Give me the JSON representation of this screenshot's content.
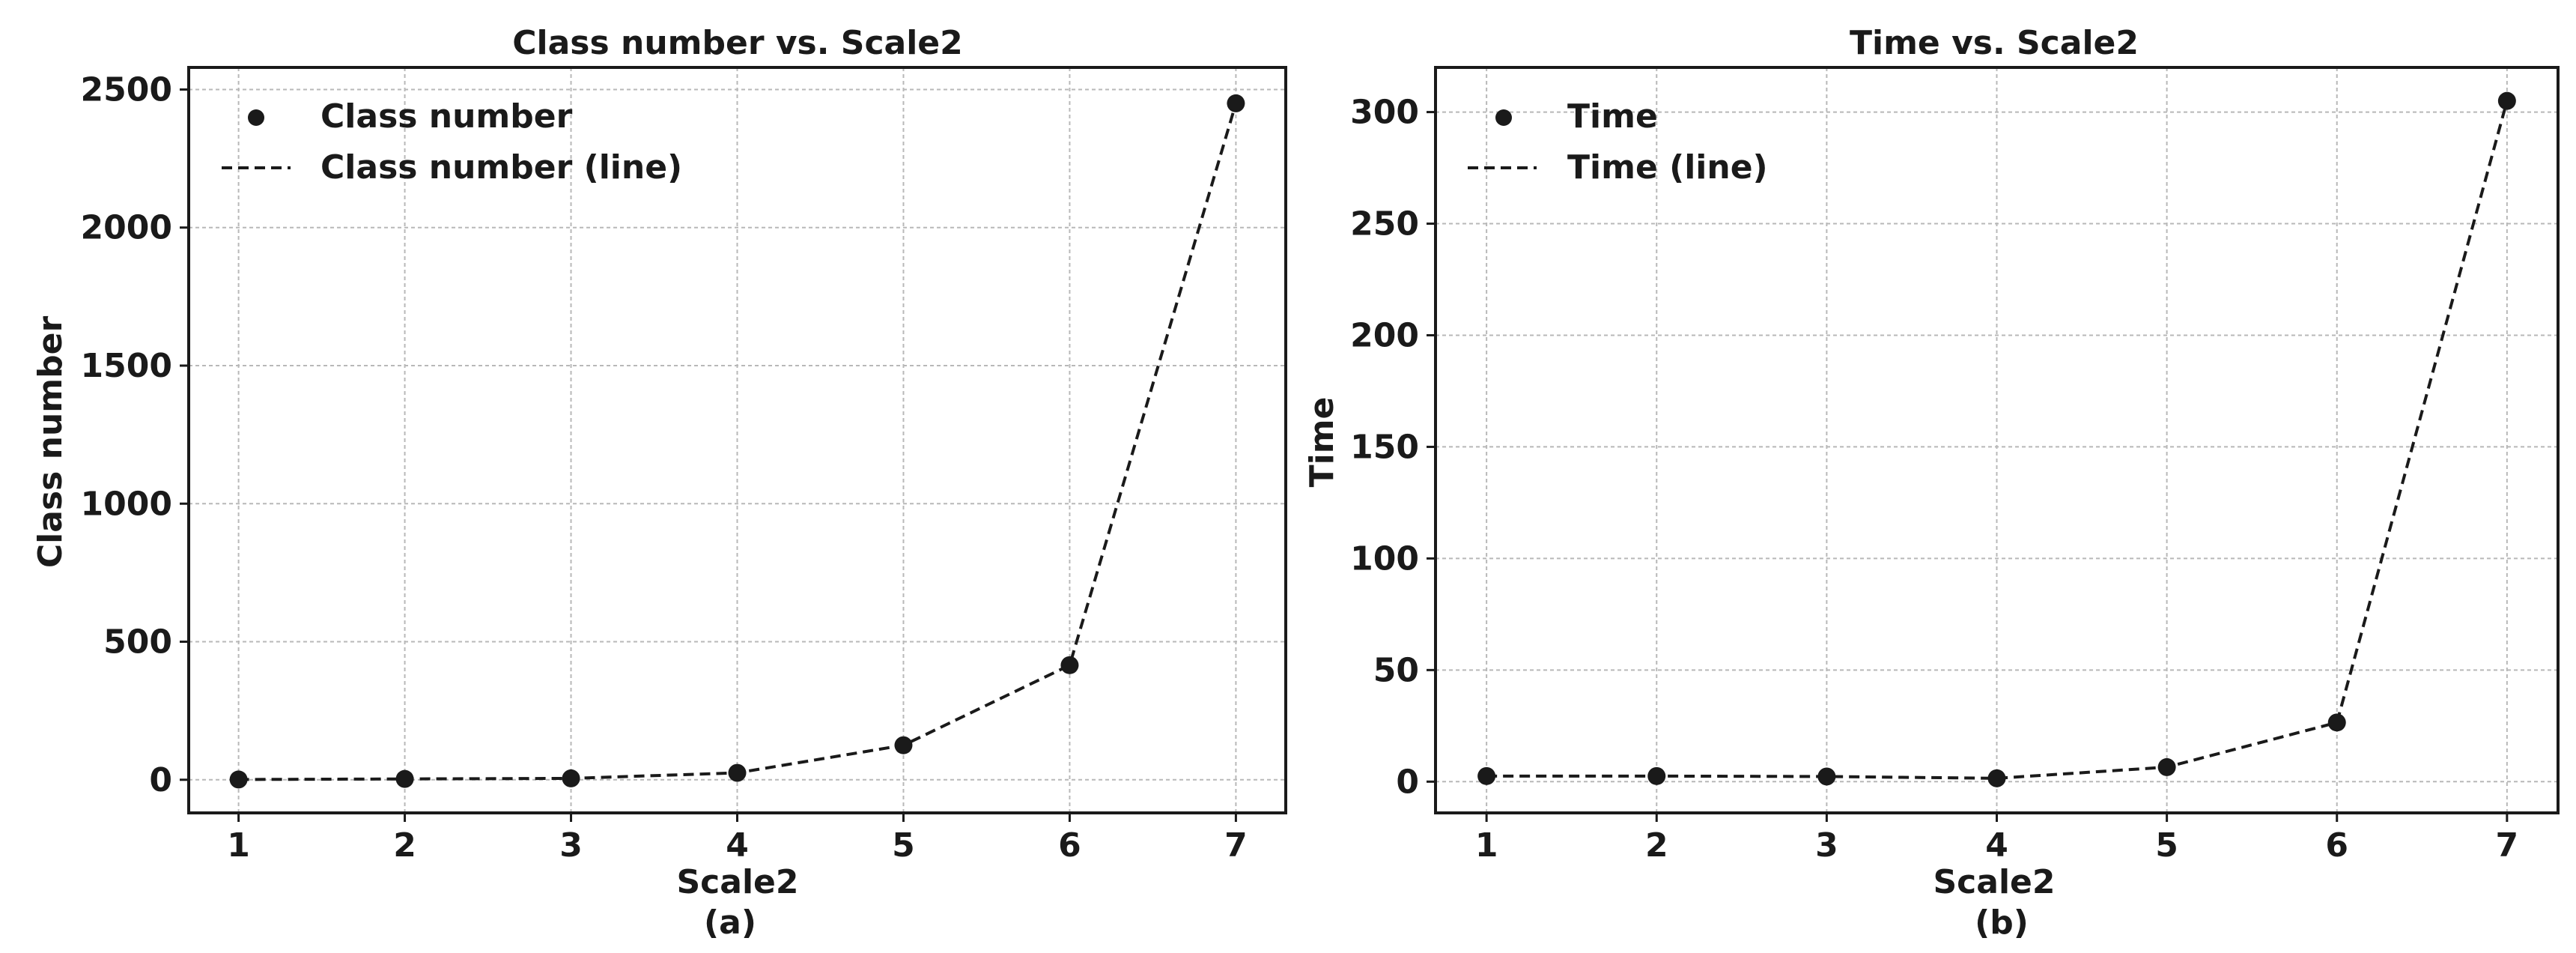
{
  "chart_data": [
    {
      "type": "line",
      "title": "Class number vs. Scale2",
      "xlabel": "Scale2",
      "ylabel": "Class number",
      "caption": "(a)",
      "x": [
        1,
        2,
        3,
        4,
        5,
        6,
        7
      ],
      "xticks": [
        "1",
        "2",
        "3",
        "4",
        "5",
        "6",
        "7"
      ],
      "yticks": [
        "0",
        "500",
        "1000",
        "1500",
        "2000",
        "2500"
      ],
      "xlim": [
        0.7,
        7.3
      ],
      "ylim": [
        -120,
        2580
      ],
      "grid": true,
      "legend_position": "top-left",
      "series": [
        {
          "name": "Class number",
          "style": "markers",
          "values": [
            1,
            3,
            5,
            25,
            125,
            415,
            2450
          ]
        },
        {
          "name": "Class number (line)",
          "style": "dashed-line",
          "values": [
            1,
            3,
            5,
            25,
            125,
            415,
            2450
          ]
        }
      ],
      "color": "#1a1a1a"
    },
    {
      "type": "line",
      "title": "Time vs. Scale2",
      "xlabel": "Scale2",
      "ylabel": "Time",
      "caption": "(b)",
      "x": [
        1,
        2,
        3,
        4,
        5,
        6,
        7
      ],
      "xticks": [
        "1",
        "2",
        "3",
        "4",
        "5",
        "6",
        "7"
      ],
      "yticks": [
        "0",
        "50",
        "100",
        "150",
        "200",
        "250",
        "300"
      ],
      "xlim": [
        0.7,
        7.3
      ],
      "ylim": [
        -14,
        320
      ],
      "grid": true,
      "legend_position": "top-left",
      "series": [
        {
          "name": "Time",
          "style": "markers",
          "values": [
            2.5,
            2.5,
            2.3,
            1.5,
            6.5,
            26.5,
            305
          ]
        },
        {
          "name": "Time (line)",
          "style": "dashed-line",
          "values": [
            2.5,
            2.5,
            2.3,
            1.5,
            6.5,
            26.5,
            305
          ]
        }
      ],
      "color": "#1a1a1a"
    }
  ]
}
